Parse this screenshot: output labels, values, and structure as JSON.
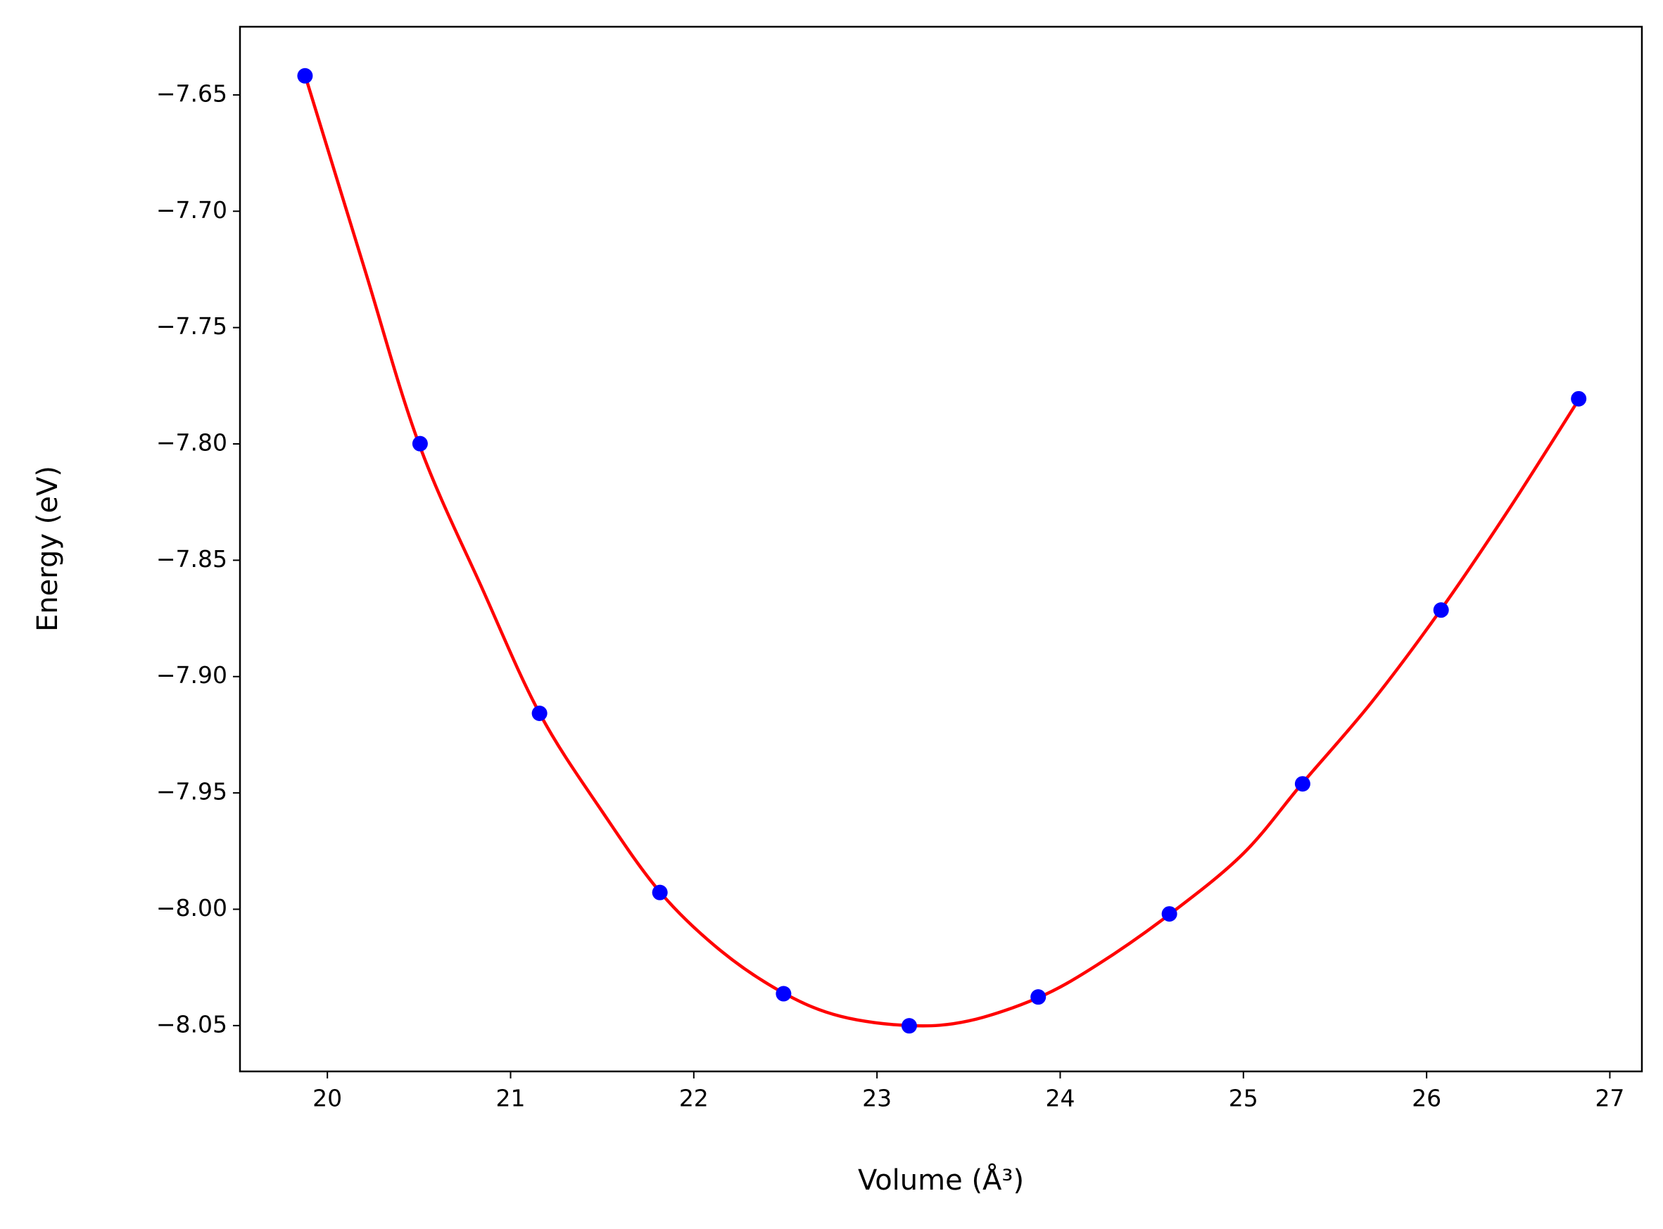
{
  "chart_data": {
    "type": "scatter",
    "xlabel": "Volume (Å³)",
    "ylabel": "Energy (eV)",
    "xlim": [
      19.523,
      27.175
    ],
    "ylim": [
      -8.0697,
      -7.6207
    ],
    "xticks": [
      20,
      21,
      22,
      23,
      24,
      25,
      26,
      27
    ],
    "yticks": [
      {
        "value": -7.65,
        "label": "−7.65"
      },
      {
        "value": -7.7,
        "label": "−7.70"
      },
      {
        "value": -7.75,
        "label": "−7.75"
      },
      {
        "value": -7.8,
        "label": "−7.80"
      },
      {
        "value": -7.85,
        "label": "−7.85"
      },
      {
        "value": -7.9,
        "label": "−7.90"
      },
      {
        "value": -7.95,
        "label": "−7.95"
      },
      {
        "value": -8.0,
        "label": "−8.00"
      },
      {
        "value": -8.05,
        "label": "−8.05"
      }
    ],
    "grid": false,
    "series": [
      {
        "type": "line",
        "color": "#ff0000",
        "x": [
          19.88,
          20.2,
          20.5,
          20.85,
          21.16,
          21.5,
          21.82,
          22.15,
          22.49,
          22.8,
          23.18,
          23.5,
          23.88,
          24.2,
          24.6,
          25.0,
          25.32,
          25.7,
          26.08,
          26.45,
          26.83
        ],
        "values": [
          -7.642,
          -7.724,
          -7.8,
          -7.863,
          -7.916,
          -7.958,
          -7.993,
          -8.018,
          -8.036,
          -8.046,
          -8.05,
          -8.048,
          -8.038,
          -8.024,
          -8.002,
          -7.976,
          -7.946,
          -7.911,
          -7.871,
          -7.828,
          -7.781
        ]
      },
      {
        "type": "scatter",
        "color": "#0000ff",
        "x": [
          19.878,
          20.506,
          21.158,
          21.815,
          22.49,
          23.176,
          23.88,
          24.596,
          25.323,
          26.079,
          26.83
        ],
        "values": [
          -7.6418,
          -7.7999,
          -7.9158,
          -7.9928,
          -8.0363,
          -8.0501,
          -8.0377,
          -8.002,
          -7.9461,
          -7.8714,
          -7.7806
        ]
      }
    ]
  }
}
